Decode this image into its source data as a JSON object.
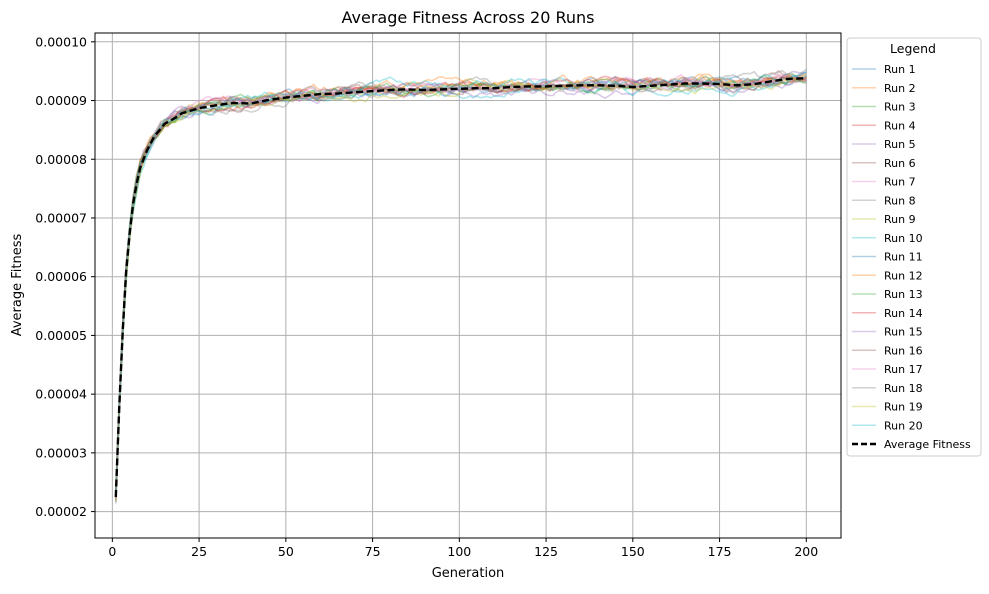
{
  "chart_data": {
    "type": "line",
    "title": "Average Fitness Across 20 Runs",
    "xlabel": "Generation",
    "ylabel": "Average Fitness",
    "xlim": [
      -5,
      210
    ],
    "ylim": [
      1.55e-05,
      0.0001015
    ],
    "x_ticks": [
      0,
      25,
      50,
      75,
      100,
      125,
      150,
      175,
      200
    ],
    "y_ticks": [
      2e-05,
      3e-05,
      4e-05,
      5e-05,
      6e-05,
      7e-05,
      8e-05,
      9e-05,
      0.0001
    ],
    "y_tick_labels": [
      "0.00002",
      "0.00003",
      "0.00004",
      "0.00005",
      "0.00006",
      "0.00007",
      "0.00008",
      "0.00009",
      "0.00010"
    ],
    "grid": true,
    "legend_title": "Legend",
    "legend_position": "outside right",
    "generations": [
      1,
      200
    ],
    "average_series": {
      "name": "Average Fitness",
      "color": "#000000",
      "style": "dashed",
      "x": [
        1,
        2,
        3,
        4,
        5,
        6,
        7,
        8,
        10,
        12,
        15,
        18,
        20,
        25,
        30,
        35,
        40,
        45,
        50,
        55,
        60,
        65,
        70,
        75,
        80,
        85,
        90,
        95,
        100,
        105,
        110,
        115,
        120,
        125,
        130,
        135,
        140,
        145,
        150,
        155,
        160,
        165,
        170,
        175,
        180,
        185,
        190,
        195,
        200
      ],
      "values": [
        2.25e-05,
        3.8e-05,
        5.1e-05,
        6.1e-05,
        6.75e-05,
        7.25e-05,
        7.58e-05,
        7.85e-05,
        8.15e-05,
        8.38e-05,
        8.6e-05,
        8.7e-05,
        8.78e-05,
        8.87e-05,
        8.92e-05,
        8.96e-05,
        8.95e-05,
        9.01e-05,
        9.05e-05,
        9.08e-05,
        9.11e-05,
        9.12e-05,
        9.14e-05,
        9.16e-05,
        9.18e-05,
        9.19e-05,
        9.18e-05,
        9.19e-05,
        9.2e-05,
        9.21e-05,
        9.21e-05,
        9.23e-05,
        9.24e-05,
        9.24e-05,
        9.25e-05,
        9.26e-05,
        9.26e-05,
        9.25e-05,
        9.23e-05,
        9.25e-05,
        9.27e-05,
        9.29e-05,
        9.29e-05,
        9.28e-05,
        9.26e-05,
        9.28e-05,
        9.33e-05,
        9.37e-05,
        9.38e-05
      ]
    },
    "series": [
      {
        "name": "Run 1",
        "color": "#1f77b4",
        "offset": 3e-07
      },
      {
        "name": "Run 2",
        "color": "#ff7f0e",
        "offset": 6e-07
      },
      {
        "name": "Run 3",
        "color": "#2ca02c",
        "offset": -2e-07
      },
      {
        "name": "Run 4",
        "color": "#d62728",
        "offset": 1e-07
      },
      {
        "name": "Run 5",
        "color": "#9467bd",
        "offset": -6e-07
      },
      {
        "name": "Run 6",
        "color": "#8c564b",
        "offset": 2e-07
      },
      {
        "name": "Run 7",
        "color": "#e377c2",
        "offset": 4e-07
      },
      {
        "name": "Run 8",
        "color": "#7f7f7f",
        "offset": -3e-07
      },
      {
        "name": "Run 9",
        "color": "#bcbd22",
        "offset": 2e-07
      },
      {
        "name": "Run 10",
        "color": "#17becf",
        "offset": -4e-07
      },
      {
        "name": "Run 11",
        "color": "#1f77b4",
        "offset": -1e-07
      },
      {
        "name": "Run 12",
        "color": "#ff7f0e",
        "offset": 5e-07
      },
      {
        "name": "Run 13",
        "color": "#2ca02c",
        "offset": 1e-07
      },
      {
        "name": "Run 14",
        "color": "#d62728",
        "offset": -2e-07
      },
      {
        "name": "Run 15",
        "color": "#9467bd",
        "offset": 3e-07
      },
      {
        "name": "Run 16",
        "color": "#8c564b",
        "offset": -1e-07
      },
      {
        "name": "Run 17",
        "color": "#e377c2",
        "offset": 2e-07
      },
      {
        "name": "Run 18",
        "color": "#7f7f7f",
        "offset": 4e-07
      },
      {
        "name": "Run 19",
        "color": "#bcbd22",
        "offset": -3e-07
      },
      {
        "name": "Run 20",
        "color": "#17becf",
        "offset": 5e-07
      }
    ]
  }
}
